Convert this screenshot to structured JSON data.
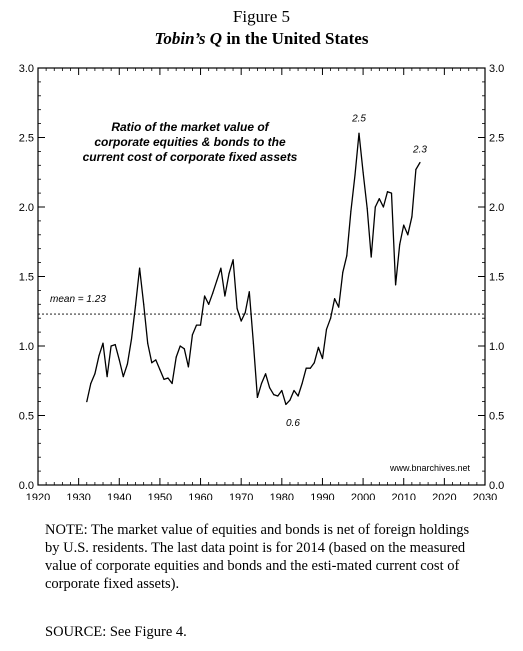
{
  "figure": {
    "number": "Figure 5",
    "title_italic": "Tobin’s Q",
    "title_rest": " in the United States"
  },
  "chart_data": {
    "type": "line",
    "annotation": "Ratio of the market value of\ncorporate equities & bonds to the\ncurrent cost of corporate fixed assets",
    "mean_label": "mean = 1.23",
    "mean_value": 1.23,
    "point_labels": [
      {
        "text": "2.5",
        "x": 1999,
        "y": 2.53
      },
      {
        "text": "2.3",
        "x": 2014,
        "y": 2.32
      },
      {
        "text": "0.6",
        "x": 1982,
        "y": 0.57
      }
    ],
    "watermark": "www.bnarchives.net",
    "xlim": [
      1920,
      2030
    ],
    "ylim": [
      0.0,
      3.0
    ],
    "x_ticks": [
      "1920",
      "1930",
      "1940",
      "1950",
      "1960",
      "1970",
      "1980",
      "1990",
      "2000",
      "2010",
      "2020",
      "2030"
    ],
    "y_ticks": [
      "0.0",
      "0.5",
      "1.0",
      "1.5",
      "2.0",
      "2.5",
      "3.0"
    ],
    "grid": false,
    "series": [
      {
        "color": "#000000",
        "x": [
          1932,
          1933,
          1934,
          1935,
          1936,
          1937,
          1938,
          1939,
          1940,
          1941,
          1942,
          1943,
          1944,
          1945,
          1946,
          1947,
          1948,
          1949,
          1950,
          1951,
          1952,
          1953,
          1954,
          1955,
          1956,
          1957,
          1958,
          1959,
          1960,
          1961,
          1962,
          1963,
          1964,
          1965,
          1966,
          1967,
          1968,
          1969,
          1970,
          1971,
          1972,
          1973,
          1974,
          1975,
          1976,
          1977,
          1978,
          1979,
          1980,
          1981,
          1982,
          1983,
          1984,
          1985,
          1986,
          1987,
          1988,
          1989,
          1990,
          1991,
          1992,
          1993,
          1994,
          1995,
          1996,
          1997,
          1998,
          1999,
          2000,
          2001,
          2002,
          2003,
          2004,
          2005,
          2006,
          2007,
          2008,
          2009,
          2010,
          2011,
          2012,
          2013,
          2014
        ],
        "values": [
          0.6,
          0.73,
          0.8,
          0.93,
          1.02,
          0.78,
          1.0,
          1.01,
          0.9,
          0.78,
          0.87,
          1.05,
          1.29,
          1.56,
          1.3,
          1.02,
          0.88,
          0.9,
          0.83,
          0.76,
          0.77,
          0.73,
          0.92,
          1.0,
          0.98,
          0.85,
          1.08,
          1.15,
          1.15,
          1.36,
          1.3,
          1.38,
          1.47,
          1.56,
          1.36,
          1.52,
          1.62,
          1.27,
          1.18,
          1.24,
          1.39,
          1.02,
          0.63,
          0.73,
          0.8,
          0.7,
          0.65,
          0.64,
          0.68,
          0.58,
          0.61,
          0.68,
          0.64,
          0.73,
          0.84,
          0.84,
          0.88,
          0.99,
          0.91,
          1.12,
          1.2,
          1.34,
          1.28,
          1.53,
          1.65,
          1.97,
          2.23,
          2.53,
          2.25,
          1.99,
          1.64,
          2.0,
          2.06,
          2.0,
          2.11,
          2.1,
          1.44,
          1.73,
          1.87,
          1.8,
          1.93,
          2.27,
          2.32
        ]
      }
    ]
  },
  "note": "NOTE: The market value of equities and bonds is net of foreign holdings by U.S. residents. The last data point is for 2014 (based on the measured value of corporate equities and bonds and the esti-mated current cost of corporate fixed assets).",
  "source": "SOURCE: See Figure 4."
}
